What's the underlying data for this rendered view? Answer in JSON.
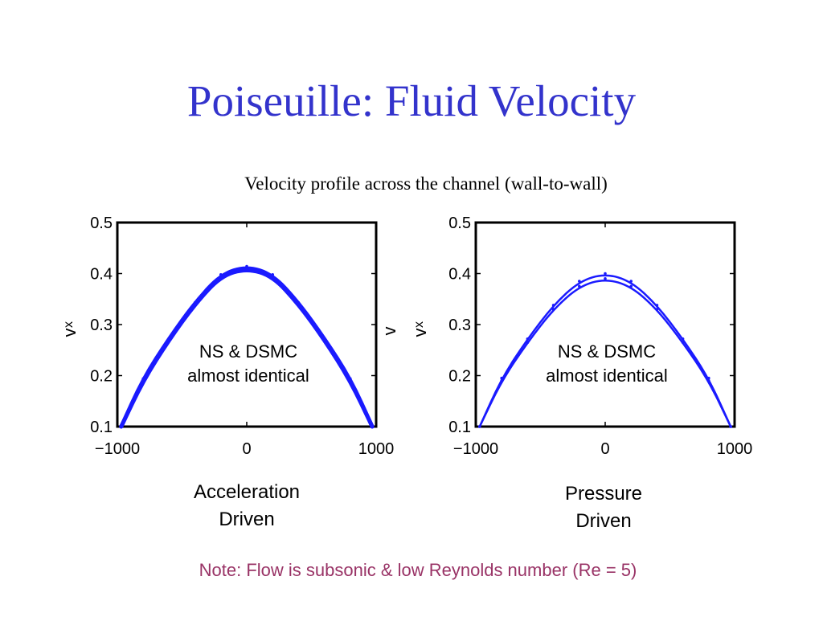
{
  "slide": {
    "title": "Poiseuille: Fluid Velocity",
    "subtitle": "Velocity profile across the channel (wall-to-wall)",
    "note": "Note: Flow is subsonic & low Reynolds number (Re = 5)",
    "title_color": "#3333cc",
    "note_color": "#993366"
  },
  "chart_data": [
    {
      "type": "line",
      "xlim": [
        -1000,
        1000
      ],
      "ylim": [
        0.1,
        0.5
      ],
      "xticks": [
        -1000,
        0,
        1000
      ],
      "xtick_labels": [
        "−1000",
        "0",
        "1000"
      ],
      "yticks": [
        0.1,
        0.2,
        0.3,
        0.4,
        0.5
      ],
      "ytick_labels": [
        "0.1",
        "0.2",
        "0.3",
        "0.4",
        "0.5"
      ],
      "ylabel": "v",
      "ylabel_sub": "x",
      "annotation": [
        "NS & DSMC",
        "almost identical"
      ],
      "caption": [
        "Acceleration",
        "Driven"
      ],
      "line_color": "#1a1aff",
      "series": [
        {
          "x": [
            -970,
            -800,
            -600,
            -400,
            -200,
            0,
            200,
            400,
            600,
            800,
            970
          ],
          "y": [
            0.1,
            0.19,
            0.27,
            0.34,
            0.395,
            0.41,
            0.395,
            0.34,
            0.27,
            0.19,
            0.1
          ]
        },
        {
          "x": [
            -970,
            -800,
            -600,
            -400,
            -200,
            0,
            200,
            400,
            600,
            800,
            970
          ],
          "y": [
            0.1,
            0.194,
            0.273,
            0.343,
            0.398,
            0.414,
            0.398,
            0.343,
            0.273,
            0.194,
            0.1
          ]
        }
      ]
    },
    {
      "type": "line",
      "xlim": [
        -1000,
        1000
      ],
      "ylim": [
        0.1,
        0.5
      ],
      "xticks": [
        -1000,
        0,
        1000
      ],
      "xtick_labels": [
        "−1000",
        "0",
        "1000"
      ],
      "yticks": [
        0.1,
        0.2,
        0.3,
        0.4,
        0.5
      ],
      "ytick_labels": [
        "0.1",
        "0.2",
        "0.3",
        "0.4",
        "0.5"
      ],
      "ylabel": "v",
      "ylabel_sub": "x",
      "ylabel_extra": "v",
      "annotation": [
        "NS & DSMC",
        "almost identical"
      ],
      "caption": [
        "Pressure",
        "Driven"
      ],
      "line_color": "#1a1aff",
      "series": [
        {
          "x": [
            -970,
            -800,
            -600,
            -400,
            -200,
            0,
            200,
            400,
            600,
            800,
            970
          ],
          "y": [
            0.1,
            0.19,
            0.265,
            0.33,
            0.375,
            0.39,
            0.375,
            0.33,
            0.265,
            0.19,
            0.1
          ]
        },
        {
          "x": [
            -970,
            -800,
            -600,
            -400,
            -200,
            0,
            200,
            400,
            600,
            800,
            970
          ],
          "y": [
            0.1,
            0.195,
            0.272,
            0.338,
            0.385,
            0.4,
            0.385,
            0.338,
            0.272,
            0.195,
            0.1
          ]
        }
      ]
    }
  ]
}
